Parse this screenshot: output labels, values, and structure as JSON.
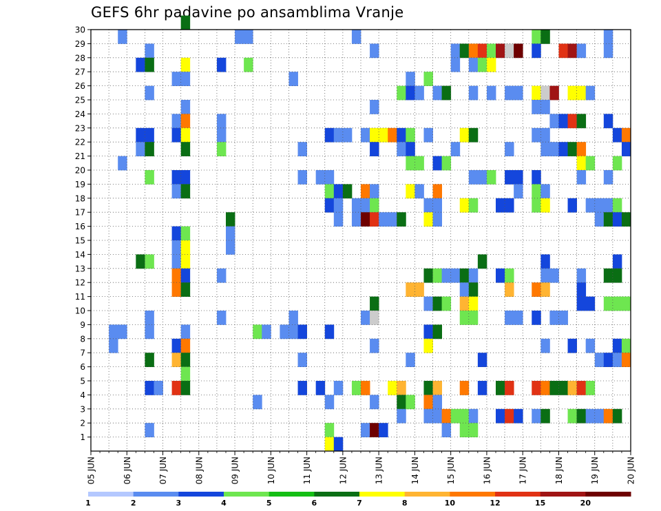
{
  "chart_data": {
    "type": "heatmap",
    "title": "GEFS 6hr padavine po ansamblima Vranje",
    "xlabel": "",
    "ylabel": "",
    "x_tick_labels": [
      "05 JUN",
      "06 JUN",
      "07 JUN",
      "08 JUN",
      "09 JUN",
      "10 JUN",
      "11 JUN",
      "12 JUN",
      "13 JUN",
      "14 JUN",
      "15 JUN",
      "16 JUN",
      "17 JUN",
      "18 JUN",
      "19 JUN",
      "20 JUN"
    ],
    "x_range": [
      "05 JUN 00Z",
      "20 JUN 00Z"
    ],
    "time_step_hours": 6,
    "y_tick_labels": [
      "1",
      "2",
      "3",
      "4",
      "5",
      "6",
      "7",
      "8",
      "9",
      "10",
      "11",
      "12",
      "13",
      "14",
      "15",
      "16",
      "17",
      "18",
      "19",
      "20",
      "21",
      "22",
      "23",
      "24",
      "25",
      "26",
      "27",
      "28",
      "29",
      "30"
    ],
    "y_range": [
      0,
      30
    ],
    "grid": true,
    "legend_placement": "bottom",
    "legend": {
      "boundaries": [
        "1",
        "2",
        "3",
        "4",
        "5",
        "6",
        "7",
        "8",
        "10",
        "12",
        "15",
        "20"
      ],
      "colors": [
        "#b4c8ff",
        "#5a8cf0",
        "#1446dc",
        "#6ee650",
        "#14be14",
        "#0a6e14",
        "#ffff00",
        "#ffb432",
        "#ff7800",
        "#e13214",
        "#a01414",
        "#6e0000"
      ]
    },
    "cells": [
      [
        29,
        0.75,
        1
      ],
      [
        29,
        4,
        1
      ],
      [
        29,
        4.25,
        1
      ],
      [
        29,
        7.25,
        1
      ],
      [
        29,
        12.25,
        3
      ],
      [
        29,
        12.5,
        5
      ],
      [
        29,
        14.25,
        1
      ],
      [
        28,
        1.5,
        1
      ],
      [
        28,
        7.75,
        1
      ],
      [
        28,
        10,
        1
      ],
      [
        28,
        10.25,
        5
      ],
      [
        28,
        10.5,
        8
      ],
      [
        28,
        10.75,
        9
      ],
      [
        28,
        11,
        3
      ],
      [
        28,
        11.25,
        10
      ],
      [
        28,
        11.5,
        12
      ],
      [
        28,
        11.75,
        11
      ],
      [
        28,
        12.25,
        2
      ],
      [
        28,
        13,
        9
      ],
      [
        28,
        13.25,
        10
      ],
      [
        28,
        13.5,
        1
      ],
      [
        28,
        14.25,
        1
      ],
      [
        27,
        1.25,
        2
      ],
      [
        27,
        1.5,
        5
      ],
      [
        27,
        2.5,
        6
      ],
      [
        27,
        3.5,
        2
      ],
      [
        27,
        4.25,
        3
      ],
      [
        27,
        10,
        1
      ],
      [
        27,
        10.5,
        1
      ],
      [
        27,
        10.75,
        3
      ],
      [
        27,
        11,
        6
      ],
      [
        26,
        2.25,
        1
      ],
      [
        26,
        2.5,
        1
      ],
      [
        26,
        5.5,
        1
      ],
      [
        26,
        8.75,
        1
      ],
      [
        26,
        9.25,
        3
      ],
      [
        25,
        1.5,
        1
      ],
      [
        25,
        8.5,
        3
      ],
      [
        25,
        8.75,
        2
      ],
      [
        25,
        9,
        1
      ],
      [
        25,
        9.5,
        1
      ],
      [
        25,
        9.75,
        5
      ],
      [
        25,
        10.5,
        1
      ],
      [
        25,
        11,
        1
      ],
      [
        25,
        11.5,
        1
      ],
      [
        25,
        11.75,
        1
      ],
      [
        25,
        12.25,
        6
      ],
      [
        25,
        12.5,
        12
      ],
      [
        25,
        12.75,
        10
      ],
      [
        25,
        13.25,
        6
      ],
      [
        25,
        13.5,
        6
      ],
      [
        25,
        13.75,
        1
      ],
      [
        24,
        2.5,
        1
      ],
      [
        24,
        7.75,
        1
      ],
      [
        24,
        12.25,
        1
      ],
      [
        24,
        12.5,
        1
      ],
      [
        23,
        2.25,
        1
      ],
      [
        23,
        2.5,
        8
      ],
      [
        23,
        3.5,
        1
      ],
      [
        23,
        12.75,
        1
      ],
      [
        23,
        13,
        2
      ],
      [
        23,
        13.25,
        9
      ],
      [
        23,
        13.5,
        5
      ],
      [
        23,
        14.25,
        2
      ],
      [
        22,
        1.25,
        2
      ],
      [
        22,
        1.5,
        2
      ],
      [
        22,
        2.25,
        2
      ],
      [
        22,
        2.5,
        6
      ],
      [
        22,
        3.5,
        1
      ],
      [
        22,
        6.5,
        2
      ],
      [
        22,
        6.75,
        1
      ],
      [
        22,
        7,
        1
      ],
      [
        22,
        7.5,
        1
      ],
      [
        22,
        7.75,
        6
      ],
      [
        22,
        8,
        6
      ],
      [
        22,
        8.25,
        8
      ],
      [
        22,
        8.5,
        2
      ],
      [
        22,
        8.75,
        3
      ],
      [
        22,
        9.25,
        1
      ],
      [
        22,
        10.25,
        6
      ],
      [
        22,
        10.5,
        5
      ],
      [
        22,
        12.25,
        1
      ],
      [
        22,
        12.5,
        1
      ],
      [
        22,
        14.5,
        2
      ],
      [
        22,
        14.75,
        8
      ],
      [
        21,
        1.25,
        1
      ],
      [
        21,
        1.5,
        5
      ],
      [
        21,
        2.5,
        5
      ],
      [
        21,
        3.5,
        3
      ],
      [
        21,
        5.75,
        1
      ],
      [
        21,
        7.75,
        2
      ],
      [
        21,
        8.5,
        1
      ],
      [
        21,
        8.75,
        2
      ],
      [
        21,
        10,
        1
      ],
      [
        21,
        11.5,
        1
      ],
      [
        21,
        12.5,
        1
      ],
      [
        21,
        12.75,
        1
      ],
      [
        21,
        13,
        2
      ],
      [
        21,
        13.25,
        5
      ],
      [
        21,
        13.5,
        8
      ],
      [
        21,
        14.75,
        2
      ],
      [
        20,
        0.75,
        1
      ],
      [
        20,
        8.75,
        3
      ],
      [
        20,
        9,
        3
      ],
      [
        20,
        9.5,
        2
      ],
      [
        20,
        9.75,
        3
      ],
      [
        20,
        13.5,
        6
      ],
      [
        20,
        13.75,
        3
      ],
      [
        20,
        14.5,
        3
      ],
      [
        19,
        1.5,
        3
      ],
      [
        19,
        2.25,
        2
      ],
      [
        19,
        2.5,
        2
      ],
      [
        19,
        5.75,
        1
      ],
      [
        19,
        6.25,
        1
      ],
      [
        19,
        6.5,
        1
      ],
      [
        19,
        10.5,
        1
      ],
      [
        19,
        10.75,
        1
      ],
      [
        19,
        11,
        3
      ],
      [
        19,
        11.5,
        2
      ],
      [
        19,
        11.75,
        2
      ],
      [
        19,
        12.25,
        2
      ],
      [
        19,
        13.5,
        1
      ],
      [
        19,
        14.25,
        1
      ],
      [
        18,
        2.25,
        1
      ],
      [
        18,
        2.5,
        5
      ],
      [
        18,
        6.5,
        3
      ],
      [
        18,
        6.75,
        2
      ],
      [
        18,
        7,
        5
      ],
      [
        18,
        7.5,
        8
      ],
      [
        18,
        7.75,
        1
      ],
      [
        18,
        8.75,
        6
      ],
      [
        18,
        9,
        1
      ],
      [
        18,
        9.5,
        8
      ],
      [
        18,
        11.75,
        1
      ],
      [
        18,
        12.25,
        3
      ],
      [
        18,
        12.5,
        1
      ],
      [
        17,
        6.5,
        2
      ],
      [
        17,
        6.75,
        1
      ],
      [
        17,
        7.25,
        1
      ],
      [
        17,
        7.5,
        1
      ],
      [
        17,
        7.75,
        3
      ],
      [
        17,
        9.25,
        1
      ],
      [
        17,
        9.5,
        1
      ],
      [
        17,
        10.25,
        6
      ],
      [
        17,
        10.5,
        3
      ],
      [
        17,
        11.25,
        2
      ],
      [
        17,
        11.5,
        2
      ],
      [
        17,
        12.25,
        3
      ],
      [
        17,
        12.5,
        6
      ],
      [
        17,
        13.25,
        2
      ],
      [
        17,
        13.75,
        1
      ],
      [
        17,
        14,
        1
      ],
      [
        17,
        14.25,
        1
      ],
      [
        17,
        14.5,
        3
      ],
      [
        16,
        3.75,
        5
      ],
      [
        16,
        6.75,
        1
      ],
      [
        16,
        7.25,
        1
      ],
      [
        16,
        7.5,
        11
      ],
      [
        16,
        7.75,
        9
      ],
      [
        16,
        8,
        1
      ],
      [
        16,
        8.25,
        1
      ],
      [
        16,
        8.5,
        5
      ],
      [
        16,
        9.25,
        6
      ],
      [
        16,
        9.5,
        1
      ],
      [
        16,
        14,
        1
      ],
      [
        16,
        14.25,
        5
      ],
      [
        16,
        14.5,
        2
      ],
      [
        16,
        14.75,
        5
      ],
      [
        15,
        2.25,
        2
      ],
      [
        15,
        2.5,
        3
      ],
      [
        15,
        3.75,
        1
      ],
      [
        14,
        2.25,
        1
      ],
      [
        14,
        2.5,
        6
      ],
      [
        14,
        3.75,
        1
      ],
      [
        13,
        1.25,
        5
      ],
      [
        13,
        1.5,
        3
      ],
      [
        13,
        2.25,
        1
      ],
      [
        13,
        2.5,
        6
      ],
      [
        13,
        10.75,
        5
      ],
      [
        13,
        12.5,
        2
      ],
      [
        13,
        14.5,
        2
      ],
      [
        12,
        2.25,
        8
      ],
      [
        12,
        2.5,
        2
      ],
      [
        12,
        3.5,
        1
      ],
      [
        12,
        9.25,
        5
      ],
      [
        12,
        9.5,
        3
      ],
      [
        12,
        9.75,
        1
      ],
      [
        12,
        10,
        1
      ],
      [
        12,
        10.25,
        5
      ],
      [
        12,
        10.5,
        1
      ],
      [
        12,
        11.25,
        2
      ],
      [
        12,
        11.5,
        3
      ],
      [
        12,
        12.5,
        1
      ],
      [
        12,
        12.75,
        1
      ],
      [
        12,
        13.5,
        1
      ],
      [
        12,
        14.25,
        5
      ],
      [
        12,
        14.5,
        5
      ],
      [
        11,
        2.25,
        8
      ],
      [
        11,
        2.5,
        5
      ],
      [
        11,
        8.75,
        7
      ],
      [
        11,
        9,
        7
      ],
      [
        11,
        10.25,
        1
      ],
      [
        11,
        10.5,
        5
      ],
      [
        11,
        11.5,
        7
      ],
      [
        11,
        12.25,
        8
      ],
      [
        11,
        12.5,
        7
      ],
      [
        11,
        13.5,
        2
      ],
      [
        10,
        7.75,
        5
      ],
      [
        10,
        9.25,
        1
      ],
      [
        10,
        9.5,
        5
      ],
      [
        10,
        9.75,
        3
      ],
      [
        10,
        10.25,
        7
      ],
      [
        10,
        10.5,
        6
      ],
      [
        10,
        13.5,
        2
      ],
      [
        10,
        13.75,
        2
      ],
      [
        10,
        14.25,
        3
      ],
      [
        10,
        14.5,
        3
      ],
      [
        10,
        14.75,
        3
      ],
      [
        9,
        1.5,
        1
      ],
      [
        9,
        3.5,
        1
      ],
      [
        9,
        5.5,
        1
      ],
      [
        9,
        7.5,
        1
      ],
      [
        9,
        7.75,
        12
      ],
      [
        9,
        10.25,
        3
      ],
      [
        9,
        10.5,
        3
      ],
      [
        9,
        11.5,
        1
      ],
      [
        9,
        11.75,
        1
      ],
      [
        9,
        12.25,
        2
      ],
      [
        9,
        12.75,
        1
      ],
      [
        9,
        13,
        1
      ],
      [
        8,
        0.5,
        1
      ],
      [
        8,
        0.75,
        1
      ],
      [
        8,
        1.5,
        1
      ],
      [
        8,
        2.5,
        1
      ],
      [
        8,
        4.5,
        3
      ],
      [
        8,
        4.75,
        1
      ],
      [
        8,
        5.25,
        1
      ],
      [
        8,
        5.5,
        1
      ],
      [
        8,
        5.75,
        2
      ],
      [
        8,
        6.5,
        2
      ],
      [
        8,
        9.25,
        2
      ],
      [
        8,
        9.5,
        5
      ],
      [
        7,
        0.5,
        1
      ],
      [
        7,
        2.25,
        2
      ],
      [
        7,
        2.5,
        8
      ],
      [
        7,
        7.75,
        1
      ],
      [
        7,
        9.25,
        6
      ],
      [
        7,
        12.5,
        1
      ],
      [
        7,
        13.25,
        2
      ],
      [
        7,
        13.75,
        1
      ],
      [
        7,
        14.5,
        2
      ],
      [
        7,
        14.75,
        3
      ],
      [
        6,
        1.5,
        5
      ],
      [
        6,
        2.25,
        7
      ],
      [
        6,
        2.5,
        5
      ],
      [
        6,
        5.75,
        1
      ],
      [
        6,
        8.75,
        1
      ],
      [
        6,
        10.75,
        2
      ],
      [
        6,
        14,
        1
      ],
      [
        6,
        14.25,
        2
      ],
      [
        6,
        14.5,
        1
      ],
      [
        6,
        14.75,
        8
      ],
      [
        5,
        2.5,
        3
      ],
      [
        4,
        1.5,
        2
      ],
      [
        4,
        1.75,
        1
      ],
      [
        4,
        2.25,
        9
      ],
      [
        4,
        2.5,
        5
      ],
      [
        4,
        5.75,
        2
      ],
      [
        4,
        6.25,
        2
      ],
      [
        4,
        6.75,
        1
      ],
      [
        4,
        7.25,
        3
      ],
      [
        4,
        7.5,
        8
      ],
      [
        4,
        8.25,
        6
      ],
      [
        4,
        8.5,
        7
      ],
      [
        4,
        9.25,
        5
      ],
      [
        4,
        9.5,
        7
      ],
      [
        4,
        10.25,
        8
      ],
      [
        4,
        10.75,
        2
      ],
      [
        4,
        11.25,
        5
      ],
      [
        4,
        11.5,
        9
      ],
      [
        4,
        12.25,
        9
      ],
      [
        4,
        12.5,
        8
      ],
      [
        4,
        12.75,
        5
      ],
      [
        4,
        13,
        5
      ],
      [
        4,
        13.25,
        7
      ],
      [
        4,
        13.5,
        9
      ],
      [
        4,
        13.75,
        3
      ],
      [
        3,
        4.5,
        1
      ],
      [
        3,
        6.5,
        1
      ],
      [
        3,
        7.75,
        1
      ],
      [
        3,
        8.5,
        5
      ],
      [
        3,
        8.75,
        3
      ],
      [
        3,
        9.25,
        8
      ],
      [
        3,
        9.5,
        1
      ],
      [
        2,
        8.5,
        1
      ],
      [
        2,
        9.25,
        1
      ],
      [
        2,
        9.5,
        1
      ],
      [
        2,
        9.75,
        8
      ],
      [
        2,
        10,
        3
      ],
      [
        2,
        10.25,
        3
      ],
      [
        2,
        10.5,
        1
      ],
      [
        2,
        11.25,
        2
      ],
      [
        2,
        11.5,
        9
      ],
      [
        2,
        11.75,
        2
      ],
      [
        2,
        12.25,
        1
      ],
      [
        2,
        12.5,
        5
      ],
      [
        2,
        13.25,
        3
      ],
      [
        2,
        13.5,
        5
      ],
      [
        2,
        13.75,
        1
      ],
      [
        2,
        14,
        1
      ],
      [
        2,
        14.25,
        8
      ],
      [
        2,
        14.5,
        5
      ],
      [
        1,
        1.5,
        1
      ],
      [
        1,
        6.5,
        3
      ],
      [
        1,
        7.5,
        1
      ],
      [
        1,
        7.75,
        11
      ],
      [
        1,
        8,
        2
      ],
      [
        1,
        9.75,
        1
      ],
      [
        1,
        10.25,
        3
      ],
      [
        1,
        10.5,
        3
      ],
      [
        0,
        6.5,
        6
      ],
      [
        0,
        6.75,
        2
      ],
      [
        30,
        2.5,
        5
      ]
    ]
  }
}
